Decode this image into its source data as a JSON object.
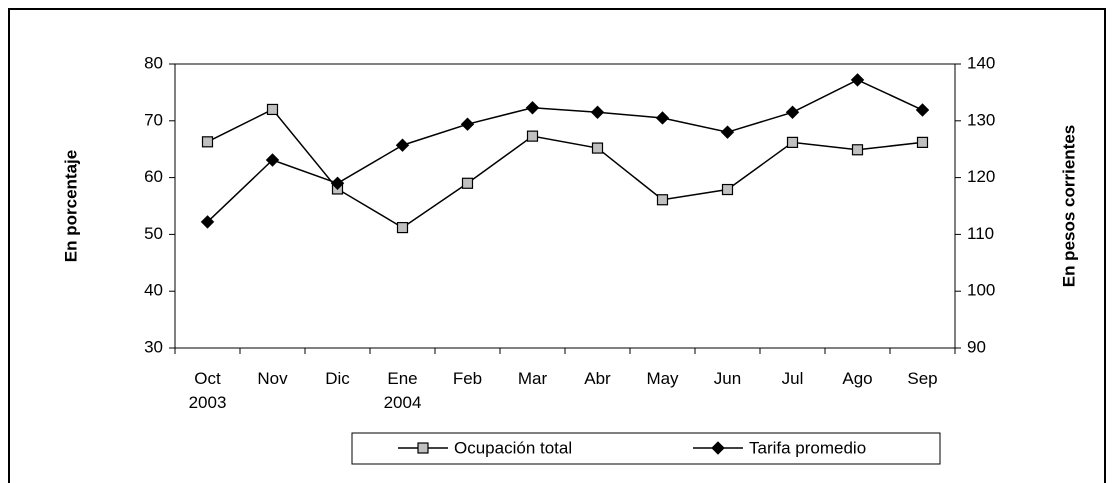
{
  "chart_data": {
    "type": "line",
    "y_label": "En porcentaje",
    "y2_label": "En pesos corrientes",
    "categories": [
      "Oct 2003",
      "Nov",
      "Dic",
      "Ene 2004",
      "Feb",
      "Mar",
      "Abr",
      "May",
      "Jun",
      "Jul",
      "Ago",
      "Sep"
    ],
    "series": [
      {
        "name": "Ocupación total",
        "color": "#c0c0c0",
        "marker": "square",
        "values": [
          66.3,
          72,
          58,
          51.2,
          59,
          67.3,
          65.2,
          56.1,
          57.9,
          66.2,
          64.9,
          66.2
        ]
      },
      {
        "name": "Tarifa promedio",
        "color": "#000000",
        "marker": "diamond",
        "axis": "y2",
        "values": [
          112.2,
          123.1,
          119.0,
          125.7,
          129.4,
          132.3,
          131.5,
          130.5,
          128.0,
          131.5,
          137.2,
          131.9
        ]
      }
    ],
    "ylim": [
      30,
      80
    ],
    "yticks": [
      30,
      40,
      50,
      60,
      70,
      80
    ],
    "y2lim": [
      90,
      140
    ],
    "y2ticks": [
      90,
      100,
      110,
      120,
      130,
      140
    ],
    "legend": "bottom"
  }
}
